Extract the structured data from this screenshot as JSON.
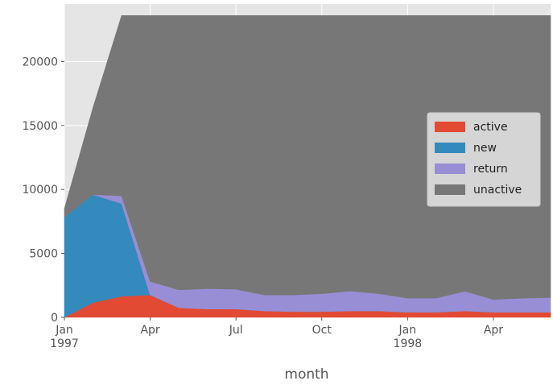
{
  "chart_data": {
    "type": "area",
    "stacked": true,
    "xlabel": "month",
    "ylabel": "",
    "ylim": [
      0,
      24500
    ],
    "yticks": [
      0,
      5000,
      10000,
      15000,
      20000
    ],
    "grid": true,
    "legend_position": "center-right",
    "x": [
      "1997-01",
      "1997-02",
      "1997-03",
      "1997-04",
      "1997-05",
      "1997-06",
      "1997-07",
      "1997-08",
      "1997-09",
      "1997-10",
      "1997-11",
      "1997-12",
      "1998-01",
      "1998-02",
      "1998-03",
      "1998-04",
      "1998-05",
      "1998-06"
    ],
    "xticks": [
      {
        "month": "1997-01",
        "label": "Jan",
        "sublabel": "1997"
      },
      {
        "month": "1997-04",
        "label": "Apr",
        "sublabel": ""
      },
      {
        "month": "1997-07",
        "label": "Jul",
        "sublabel": ""
      },
      {
        "month": "1997-10",
        "label": "Oct",
        "sublabel": ""
      },
      {
        "month": "1998-01",
        "label": "Jan",
        "sublabel": "1998"
      },
      {
        "month": "1998-04",
        "label": "Apr",
        "sublabel": ""
      }
    ],
    "series": [
      {
        "name": "active",
        "color": "#e24a33",
        "values": [
          0,
          1150,
          1650,
          1750,
          750,
          650,
          650,
          500,
          450,
          450,
          500,
          500,
          400,
          400,
          500,
          400,
          400,
          400
        ]
      },
      {
        "name": "new",
        "color": "#348abd",
        "values": [
          7850,
          8450,
          7250,
          0,
          0,
          0,
          0,
          0,
          0,
          0,
          0,
          0,
          0,
          0,
          0,
          0,
          0,
          0
        ]
      },
      {
        "name": "return",
        "color": "#988ed5",
        "values": [
          0,
          0,
          600,
          1050,
          1400,
          1600,
          1550,
          1250,
          1300,
          1400,
          1550,
          1350,
          1100,
          1100,
          1550,
          1000,
          1100,
          1150
        ]
      },
      {
        "name": "unactive",
        "color": "#777777",
        "values": [
          650,
          6800,
          14100,
          20800,
          21450,
          21350,
          21400,
          21850,
          21850,
          21750,
          21550,
          21750,
          22100,
          22100,
          21550,
          22200,
          22100,
          22050
        ]
      }
    ]
  }
}
